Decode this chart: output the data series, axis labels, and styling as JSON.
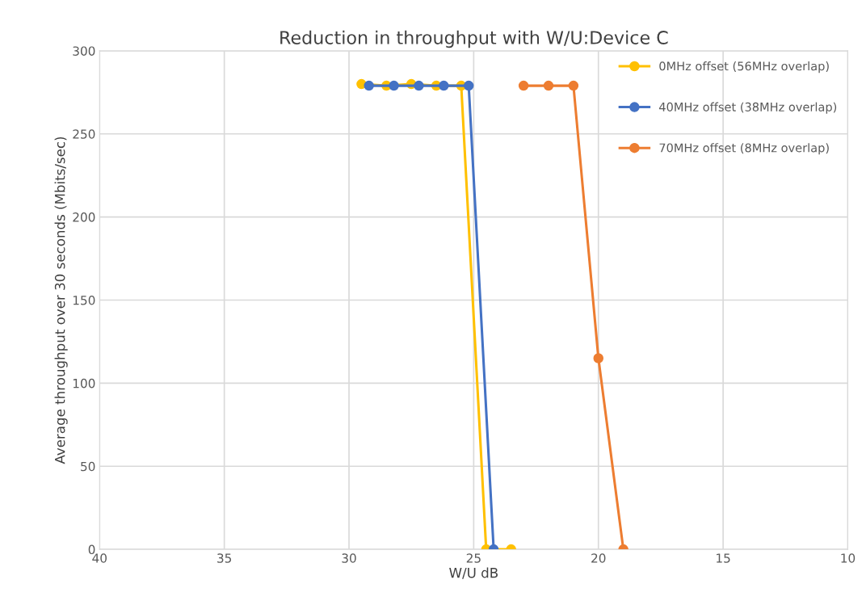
{
  "chart_data": {
    "type": "line",
    "title": "Reduction in throughput with W/U:Device C",
    "xlabel": "W/U dB",
    "ylabel": "Average throughput over 30 seconds (Mbits/sec)",
    "xlim": [
      40,
      10
    ],
    "xticks": [
      40,
      35,
      30,
      25,
      20,
      15,
      10
    ],
    "ylim": [
      0,
      300
    ],
    "yticks": [
      0,
      50,
      100,
      150,
      200,
      250,
      300
    ],
    "grid": true,
    "legend": "top right",
    "marker": "circle",
    "line_style": "solid",
    "series": [
      {
        "name": "0MHz offset (56MHz overlap)",
        "color": "#ffc000",
        "x": [
          29.5,
          28.5,
          27.5,
          26.5,
          25.5,
          24.5,
          23.5
        ],
        "values": [
          280,
          279,
          280,
          279,
          279,
          0,
          0
        ]
      },
      {
        "name": "40MHz offset (38MHz overlap)",
        "color": "#4472c4",
        "x": [
          29.2,
          28.2,
          27.2,
          26.2,
          25.2,
          24.2
        ],
        "values": [
          279,
          279,
          279,
          279,
          279,
          0
        ]
      },
      {
        "name": "70MHz offset (8MHz overlap)",
        "color": "#ed7d31",
        "x": [
          23,
          22,
          21,
          20,
          19
        ],
        "values": [
          279,
          279,
          279,
          115,
          0
        ]
      }
    ]
  }
}
